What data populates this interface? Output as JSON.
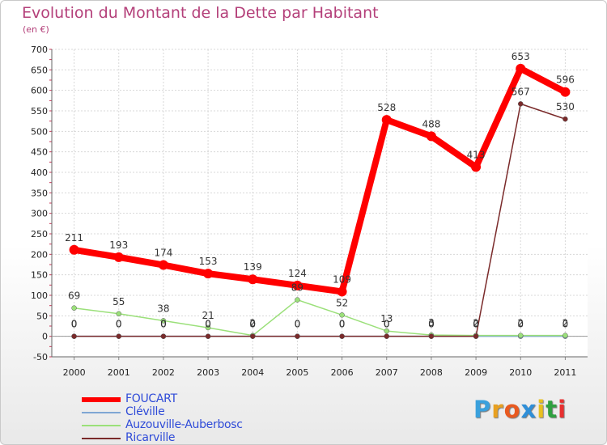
{
  "chart_data": {
    "type": "line",
    "title": "Evolution du Montant de la Dette par Habitant",
    "unit_label": "(en €)",
    "xlabel": "",
    "ylabel": "",
    "ylim": [
      -50,
      700
    ],
    "yticks": [
      "-50",
      "0",
      "50",
      "100",
      "150",
      "200",
      "250",
      "300",
      "350",
      "400",
      "450",
      "500",
      "550",
      "600",
      "650",
      "700"
    ],
    "categories": [
      "2000",
      "2001",
      "2002",
      "2003",
      "2004",
      "2005",
      "2006",
      "2007",
      "2008",
      "2009",
      "2010",
      "2011"
    ],
    "grid": true,
    "legend_position": "bottom-left",
    "series": [
      {
        "name": "FOUCART",
        "color": "#ff0000",
        "values": [
          211,
          193,
          174,
          153,
          139,
          124,
          109,
          528,
          488,
          413,
          653,
          596
        ],
        "labels": [
          "211",
          "193",
          "174",
          "153",
          "139",
          "124",
          "109",
          "528",
          "488",
          "413",
          "653",
          "596"
        ]
      },
      {
        "name": "Cléville",
        "color": "#7fa7d4",
        "values": [
          0,
          0,
          0,
          0,
          0,
          0,
          0,
          0,
          0,
          0,
          0,
          0
        ],
        "labels": [
          "0",
          "0",
          "0",
          "0",
          "0",
          "0",
          "0",
          "0",
          "0",
          "0",
          "0",
          "0"
        ]
      },
      {
        "name": "Auzouville-Auberbosc",
        "color": "#9be07a",
        "values": [
          69,
          55,
          38,
          21,
          2,
          89,
          52,
          13,
          3,
          2,
          2,
          2
        ],
        "labels": [
          "69",
          "55",
          "38",
          "21",
          "2",
          "89",
          "52",
          "13",
          "3",
          "2",
          "2",
          "2"
        ]
      },
      {
        "name": "Ricarville",
        "color": "#7a2a2a",
        "values": [
          0,
          0,
          0,
          0,
          0,
          0,
          0,
          0,
          0,
          0,
          567,
          530
        ],
        "labels": [
          "0",
          "0",
          "0",
          "0",
          "0",
          "0",
          "0",
          "0",
          "0",
          "0",
          "567",
          "530"
        ]
      }
    ]
  },
  "branding": {
    "logo_letters": [
      "P",
      "r",
      "o",
      "x",
      "i",
      "t",
      "i"
    ],
    "logo_colors": [
      "#3aa0dc",
      "#e8a020",
      "#e85a20",
      "#2f8fd8",
      "#e8c020",
      "#30a040",
      "#e83030"
    ]
  }
}
